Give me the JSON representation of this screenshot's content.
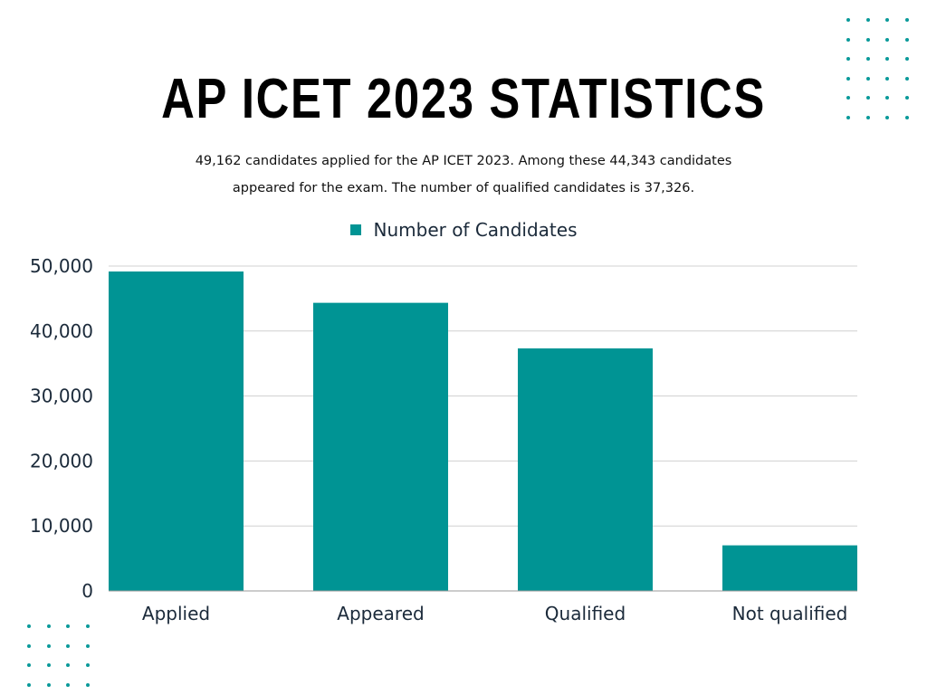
{
  "colors": {
    "bar": "#009494",
    "grid": "#d0d0d0",
    "text": "#1b2a3a",
    "dots": "#0a9a9a"
  },
  "decoration": {
    "dots-icon": "dot-grid"
  },
  "chart_data": {
    "type": "bar",
    "title": "AP ICET 2023 STATISTICS",
    "subtitle_lines": [
      "49,162 candidates applied for the AP ICET 2023. Among these 44,343 candidates",
      "appeared for the exam. The number of qualified candidates is 37,326."
    ],
    "categories": [
      "Applied",
      "Appeared",
      "Qualified",
      "Not qualified"
    ],
    "series": [
      {
        "name": "Number of Candidates",
        "values": [
          49162,
          44343,
          37326,
          7017
        ]
      }
    ],
    "yticks": [
      0,
      10000,
      20000,
      30000,
      40000,
      50000
    ],
    "ytick_labels": [
      "0",
      "10,000",
      "20,000",
      "30,000",
      "40,000",
      "50,000"
    ],
    "ylim": [
      0,
      50000
    ],
    "grid": true,
    "legend": "top-center"
  }
}
